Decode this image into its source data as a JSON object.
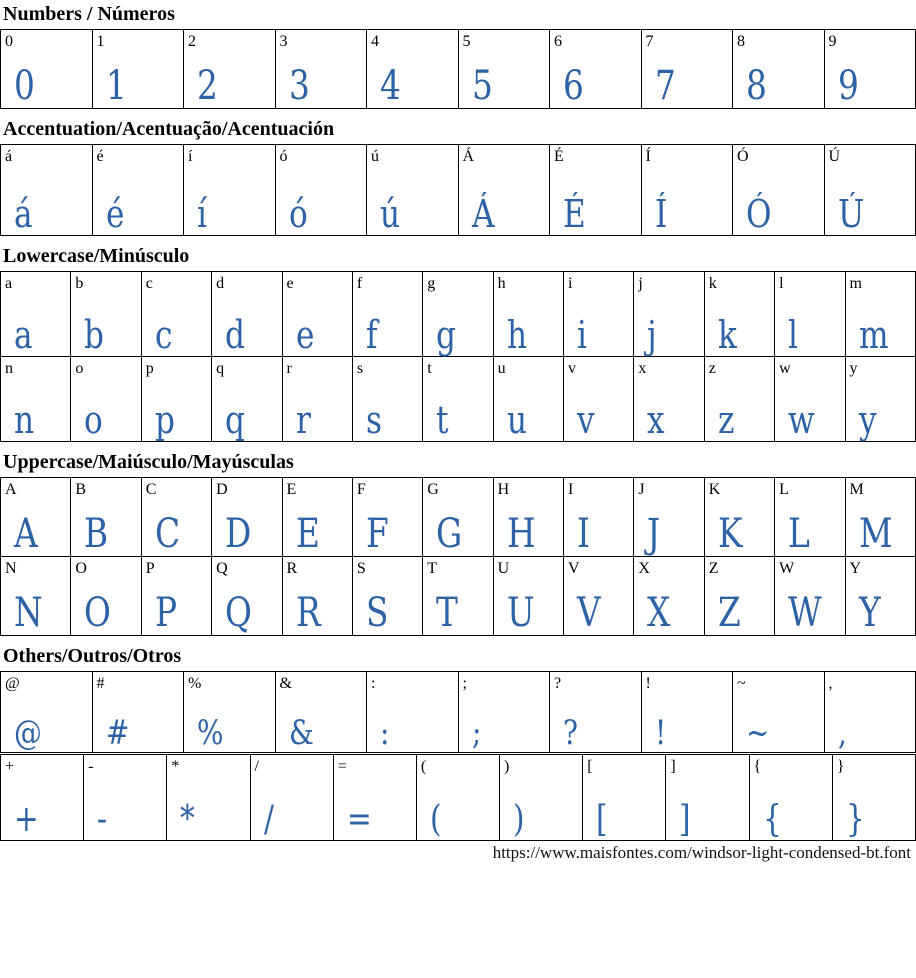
{
  "page": {
    "url": "https://www.maisfontes.com/windsor-light-condensed-bt.font",
    "glyph_color": "#2d62a7"
  },
  "sections": [
    {
      "title": "Numbers / Números",
      "rows": [
        [
          "0",
          "1",
          "2",
          "3",
          "4",
          "5",
          "6",
          "7",
          "8",
          "9"
        ]
      ]
    },
    {
      "title": "Accentuation/Acentuação/Acentuación",
      "rows": [
        [
          "á",
          "é",
          "í",
          "ó",
          "ú",
          "Á",
          "É",
          "Í",
          "Ó",
          "Ú"
        ]
      ]
    },
    {
      "title": "Lowercase/Minúsculo",
      "rows": [
        [
          "a",
          "b",
          "c",
          "d",
          "e",
          "f",
          "g",
          "h",
          "i",
          "j",
          "k",
          "l",
          "m"
        ],
        [
          "n",
          "o",
          "p",
          "q",
          "r",
          "s",
          "t",
          "u",
          "v",
          "x",
          "z",
          "w",
          "y"
        ]
      ]
    },
    {
      "title": "Uppercase/Maiúsculo/Mayúsculas",
      "rows": [
        [
          "A",
          "B",
          "C",
          "D",
          "E",
          "F",
          "G",
          "H",
          "I",
          "J",
          "K",
          "L",
          "M"
        ],
        [
          "N",
          "O",
          "P",
          "Q",
          "R",
          "S",
          "T",
          "U",
          "V",
          "X",
          "Z",
          "W",
          "Y"
        ]
      ]
    },
    {
      "title": "Others/Outros/Otros",
      "rows": [
        [
          "@",
          "#",
          "%",
          "&",
          ":",
          ";",
          "?",
          "!",
          "~",
          ","
        ],
        [
          "+",
          "-",
          "*",
          "/",
          "=",
          "(",
          ")",
          "[",
          "]",
          "{",
          "}"
        ]
      ]
    }
  ]
}
